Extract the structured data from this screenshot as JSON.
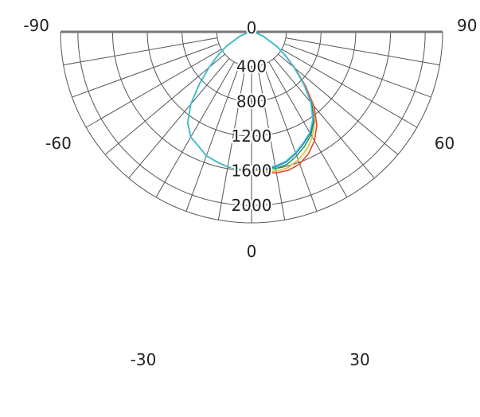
{
  "chart_data": {
    "type": "polar",
    "title": "",
    "angle_ticks": [
      {
        "label": "-90",
        "angle": -90
      },
      {
        "label": "90",
        "angle": 90
      },
      {
        "label": "-60",
        "angle": -60
      },
      {
        "label": "60",
        "angle": 60
      },
      {
        "label": "-30",
        "angle": -30
      },
      {
        "label": "30",
        "angle": 30
      },
      {
        "label": "0",
        "angle": 0
      }
    ],
    "radial_ticks": [
      {
        "label": "400",
        "value": 400
      },
      {
        "label": "800",
        "value": 800
      },
      {
        "label": "1200",
        "value": 1200
      },
      {
        "label": "1600",
        "value": 1600
      },
      {
        "label": "2000",
        "value": 2000
      }
    ],
    "center_label": "0",
    "rmax": 2200,
    "grid": true,
    "spoke_step_deg": 10,
    "series": [
      {
        "color": "#e8472f",
        "points": [
          [
            -90,
            0
          ],
          [
            -80,
            40
          ],
          [
            -70,
            140
          ],
          [
            -60,
            340
          ],
          [
            -55,
            470
          ],
          [
            -50,
            640
          ],
          [
            -45,
            850
          ],
          [
            -40,
            1090
          ],
          [
            -35,
            1280
          ],
          [
            -30,
            1400
          ],
          [
            -25,
            1450
          ],
          [
            -20,
            1520
          ],
          [
            -15,
            1550
          ],
          [
            -10,
            1580
          ],
          [
            -5,
            1590
          ],
          [
            0,
            1580
          ],
          [
            5,
            1620
          ],
          [
            10,
            1650
          ],
          [
            15,
            1650
          ],
          [
            20,
            1620
          ],
          [
            25,
            1550
          ],
          [
            30,
            1450
          ],
          [
            35,
            1310
          ],
          [
            40,
            1120
          ],
          [
            45,
            880
          ],
          [
            50,
            650
          ],
          [
            55,
            480
          ],
          [
            60,
            340
          ],
          [
            70,
            140
          ],
          [
            80,
            40
          ],
          [
            90,
            0
          ]
        ]
      },
      {
        "color": "#e6b830",
        "points": [
          [
            -90,
            0
          ],
          [
            -80,
            40
          ],
          [
            -70,
            140
          ],
          [
            -60,
            340
          ],
          [
            -55,
            470
          ],
          [
            -50,
            640
          ],
          [
            -45,
            850
          ],
          [
            -40,
            1090
          ],
          [
            -35,
            1280
          ],
          [
            -30,
            1400
          ],
          [
            -25,
            1450
          ],
          [
            -20,
            1520
          ],
          [
            -15,
            1550
          ],
          [
            -10,
            1580
          ],
          [
            -5,
            1590
          ],
          [
            0,
            1580
          ],
          [
            5,
            1610
          ],
          [
            10,
            1630
          ],
          [
            15,
            1620
          ],
          [
            20,
            1570
          ],
          [
            25,
            1500
          ],
          [
            30,
            1400
          ],
          [
            35,
            1270
          ],
          [
            40,
            1090
          ],
          [
            45,
            860
          ],
          [
            50,
            640
          ],
          [
            55,
            470
          ],
          [
            60,
            340
          ],
          [
            70,
            140
          ],
          [
            80,
            40
          ],
          [
            90,
            0
          ]
        ]
      },
      {
        "color": "#22a24a",
        "points": [
          [
            -90,
            0
          ],
          [
            -80,
            40
          ],
          [
            -70,
            140
          ],
          [
            -60,
            340
          ],
          [
            -55,
            470
          ],
          [
            -50,
            640
          ],
          [
            -45,
            850
          ],
          [
            -40,
            1090
          ],
          [
            -35,
            1280
          ],
          [
            -30,
            1400
          ],
          [
            -25,
            1450
          ],
          [
            -20,
            1520
          ],
          [
            -15,
            1550
          ],
          [
            -10,
            1580
          ],
          [
            -5,
            1590
          ],
          [
            0,
            1580
          ],
          [
            5,
            1590
          ],
          [
            10,
            1600
          ],
          [
            15,
            1580
          ],
          [
            20,
            1520
          ],
          [
            25,
            1450
          ],
          [
            30,
            1370
          ],
          [
            35,
            1250
          ],
          [
            40,
            1080
          ],
          [
            45,
            850
          ],
          [
            50,
            640
          ],
          [
            55,
            470
          ],
          [
            60,
            340
          ],
          [
            70,
            140
          ],
          [
            80,
            40
          ],
          [
            90,
            0
          ]
        ]
      },
      {
        "color": "#2a5fd0",
        "points": [
          [
            -90,
            0
          ],
          [
            -80,
            40
          ],
          [
            -70,
            140
          ],
          [
            -60,
            340
          ],
          [
            -55,
            470
          ],
          [
            -50,
            640
          ],
          [
            -45,
            850
          ],
          [
            -40,
            1090
          ],
          [
            -35,
            1280
          ],
          [
            -30,
            1400
          ],
          [
            -25,
            1450
          ],
          [
            -20,
            1520
          ],
          [
            -15,
            1550
          ],
          [
            -10,
            1580
          ],
          [
            -5,
            1590
          ],
          [
            0,
            1580
          ],
          [
            5,
            1580
          ],
          [
            10,
            1580
          ],
          [
            15,
            1550
          ],
          [
            20,
            1490
          ],
          [
            25,
            1420
          ],
          [
            30,
            1350
          ],
          [
            35,
            1240
          ],
          [
            40,
            1070
          ],
          [
            45,
            850
          ],
          [
            50,
            640
          ],
          [
            55,
            470
          ],
          [
            60,
            340
          ],
          [
            70,
            140
          ],
          [
            80,
            40
          ],
          [
            90,
            0
          ]
        ]
      },
      {
        "color": "#3cc8d8",
        "points": [
          [
            -90,
            0
          ],
          [
            -80,
            40
          ],
          [
            -70,
            140
          ],
          [
            -60,
            340
          ],
          [
            -55,
            470
          ],
          [
            -50,
            640
          ],
          [
            -45,
            850
          ],
          [
            -40,
            1090
          ],
          [
            -35,
            1280
          ],
          [
            -30,
            1400
          ],
          [
            -25,
            1450
          ],
          [
            -20,
            1520
          ],
          [
            -15,
            1550
          ],
          [
            -10,
            1580
          ],
          [
            -5,
            1590
          ],
          [
            0,
            1580
          ],
          [
            5,
            1570
          ],
          [
            10,
            1570
          ],
          [
            15,
            1540
          ],
          [
            20,
            1480
          ],
          [
            25,
            1410
          ],
          [
            30,
            1340
          ],
          [
            35,
            1230
          ],
          [
            40,
            1060
          ],
          [
            45,
            845
          ],
          [
            50,
            635
          ],
          [
            55,
            470
          ],
          [
            60,
            340
          ],
          [
            70,
            140
          ],
          [
            80,
            40
          ],
          [
            90,
            0
          ]
        ]
      }
    ]
  }
}
